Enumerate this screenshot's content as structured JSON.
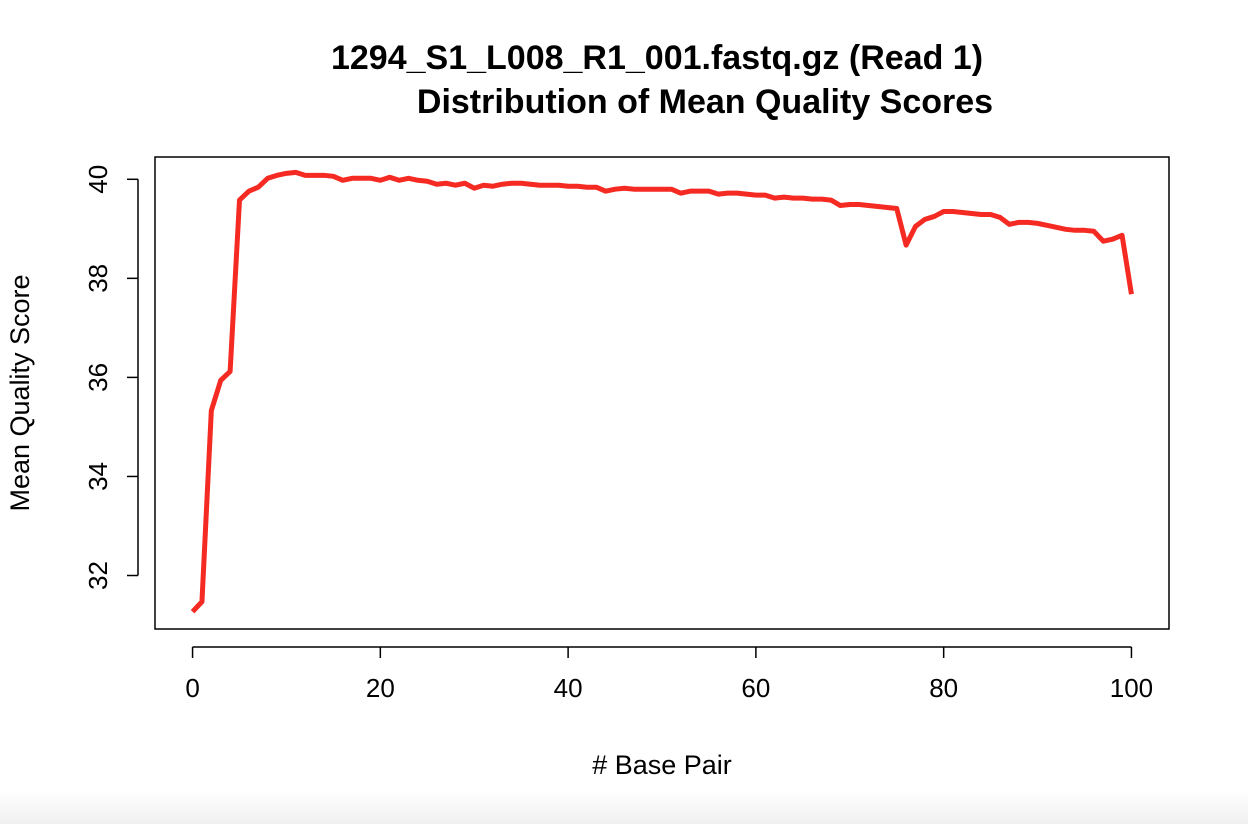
{
  "chart_data": {
    "type": "line",
    "title": [
      "1294_S1_L008_R1_001.fastq.gz (Read 1)",
      "Distribution of Mean Quality Scores"
    ],
    "x_label": "# Base Pair",
    "y_label": "Mean Quality Score",
    "x": [
      0,
      1,
      2,
      3,
      4,
      5,
      6,
      7,
      8,
      9,
      10,
      11,
      12,
      13,
      14,
      15,
      16,
      17,
      18,
      19,
      20,
      21,
      22,
      23,
      24,
      25,
      26,
      27,
      28,
      29,
      30,
      31,
      32,
      33,
      34,
      35,
      36,
      37,
      38,
      39,
      40,
      41,
      42,
      43,
      44,
      45,
      46,
      47,
      48,
      49,
      50,
      51,
      52,
      53,
      54,
      55,
      56,
      57,
      58,
      59,
      60,
      61,
      62,
      63,
      64,
      65,
      66,
      67,
      68,
      69,
      70,
      71,
      72,
      73,
      74,
      75,
      76,
      77,
      78,
      79,
      80,
      81,
      82,
      83,
      84,
      85,
      86,
      87,
      88,
      89,
      90,
      91,
      92,
      93,
      94,
      95,
      96,
      97,
      98,
      99,
      100
    ],
    "series": [
      {
        "color": "#f52a22",
        "values": [
          31.27,
          31.47,
          35.33,
          35.94,
          36.12,
          39.58,
          39.76,
          39.84,
          40.02,
          40.08,
          40.12,
          40.14,
          40.08,
          40.08,
          40.08,
          40.06,
          39.98,
          40.02,
          40.02,
          40.02,
          39.98,
          40.04,
          39.98,
          40.02,
          39.98,
          39.96,
          39.9,
          39.92,
          39.88,
          39.92,
          39.82,
          39.88,
          39.86,
          39.9,
          39.92,
          39.92,
          39.9,
          39.88,
          39.88,
          39.88,
          39.86,
          39.86,
          39.84,
          39.84,
          39.76,
          39.8,
          39.82,
          39.8,
          39.8,
          39.8,
          39.8,
          39.8,
          39.72,
          39.76,
          39.76,
          39.76,
          39.7,
          39.72,
          39.72,
          39.7,
          39.68,
          39.68,
          39.62,
          39.64,
          39.62,
          39.62,
          39.6,
          39.6,
          39.58,
          39.47,
          39.49,
          39.49,
          39.47,
          39.45,
          39.43,
          39.41,
          38.67,
          39.05,
          39.19,
          39.25,
          39.35,
          39.35,
          39.33,
          39.31,
          39.29,
          39.29,
          39.23,
          39.09,
          39.13,
          39.13,
          39.11,
          39.07,
          39.03,
          38.99,
          38.97,
          38.97,
          38.95,
          38.75,
          38.79,
          38.87,
          37.68
        ]
      }
    ],
    "xlim": [
      -4,
      104
    ],
    "ylim": [
      30.92,
      40.45
    ],
    "xticks": [
      0,
      20,
      40,
      60,
      80,
      100
    ],
    "yticks": [
      32,
      34,
      36,
      38,
      40
    ]
  }
}
